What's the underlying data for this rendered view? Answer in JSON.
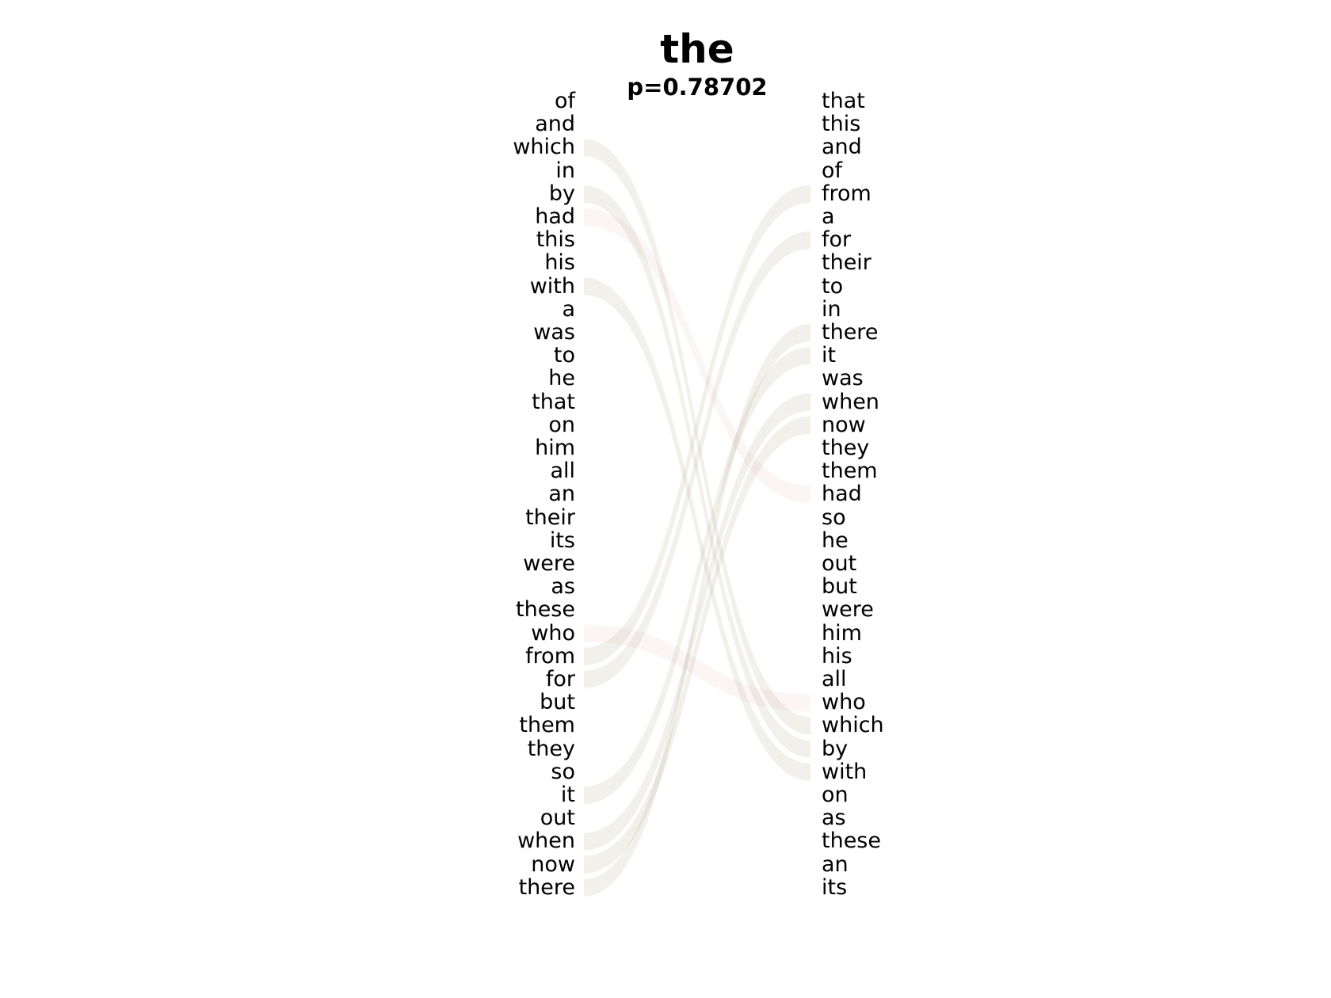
{
  "diagram": {
    "title": "the",
    "subtitle": "p=0.78702",
    "left_words": [
      "of",
      "and",
      "which",
      "in",
      "by",
      "had",
      "this",
      "his",
      "with",
      "a",
      "was",
      "to",
      "he",
      "that",
      "on",
      "him",
      "all",
      "an",
      "their",
      "its",
      "were",
      "as",
      "these",
      "who",
      "from",
      "for",
      "but",
      "them",
      "they",
      "so",
      "it",
      "out",
      "when",
      "now",
      "there"
    ],
    "right_words": [
      "that",
      "this",
      "and",
      "of",
      "from",
      "a",
      "for",
      "their",
      "to",
      "in",
      "there",
      "it",
      "was",
      "when",
      "now",
      "they",
      "them",
      "had",
      "so",
      "he",
      "out",
      "but",
      "were",
      "him",
      "his",
      "all",
      "who",
      "which",
      "by",
      "with",
      "on",
      "as",
      "these",
      "an",
      "its"
    ],
    "left_links": [
      {
        "from": "which",
        "to": "which"
      },
      {
        "from": "by",
        "to": "by"
      },
      {
        "from": "had",
        "to": "had"
      },
      {
        "from": "with",
        "to": "with"
      },
      {
        "from": "who",
        "to": "who"
      },
      {
        "from": "from",
        "to": "from"
      },
      {
        "from": "for",
        "to": "for"
      },
      {
        "from": "it",
        "to": "it"
      },
      {
        "from": "when",
        "to": "when"
      },
      {
        "from": "now",
        "to": "now"
      },
      {
        "from": "there",
        "to": "there"
      }
    ],
    "right_links": [
      {
        "from": "from",
        "to": "from"
      },
      {
        "from": "for",
        "to": "for"
      },
      {
        "from": "there",
        "to": "there"
      },
      {
        "from": "it",
        "to": "it"
      },
      {
        "from": "when",
        "to": "when"
      },
      {
        "from": "now",
        "to": "now"
      },
      {
        "from": "which",
        "to": "which"
      },
      {
        "from": "by",
        "to": "by"
      },
      {
        "from": "with",
        "to": "with"
      }
    ],
    "colors": {
      "left_ribbon": "#d98c8c",
      "right_ribbon": "#8cc48c",
      "text": "#000000"
    }
  }
}
